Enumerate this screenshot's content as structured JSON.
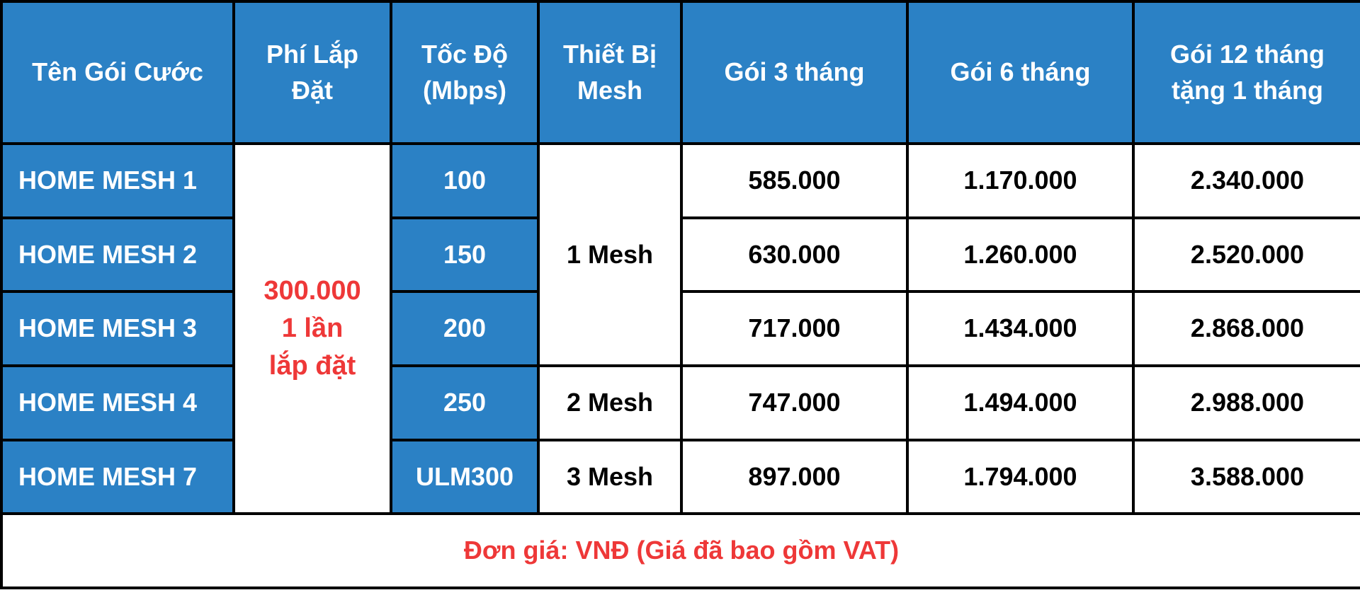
{
  "headers": {
    "name": "Tên Gói Cước",
    "install_l1": "Phí Lắp",
    "install_l2": "Đặt",
    "speed_l1": "Tốc Độ",
    "speed_l2": "(Mbps)",
    "mesh_l1": "Thiết Bị",
    "mesh_l2": "Mesh",
    "p3": "Gói 3 tháng",
    "p6": "Gói 6 tháng",
    "p12_l1": "Gói 12 tháng",
    "p12_l2": "tặng 1 tháng"
  },
  "install_fee": {
    "l1": "300.000",
    "l2": "1 lần",
    "l3": "lắp đặt"
  },
  "rows": [
    {
      "name": "HOME MESH 1",
      "speed": "100",
      "p3": "585.000",
      "p6": "1.170.000",
      "p12": "2.340.000"
    },
    {
      "name": "HOME MESH 2",
      "speed": "150",
      "p3": "630.000",
      "p6": "1.260.000",
      "p12": "2.520.000"
    },
    {
      "name": "HOME MESH 3",
      "speed": "200",
      "p3": "717.000",
      "p6": "1.434.000",
      "p12": "2.868.000"
    },
    {
      "name": "HOME MESH 4",
      "speed": "250",
      "p3": "747.000",
      "p6": "1.494.000",
      "p12": "2.988.000"
    },
    {
      "name": "HOME MESH 7",
      "speed": "ULM300",
      "p3": "897.000",
      "p6": "1.794.000",
      "p12": "3.588.000"
    }
  ],
  "mesh_groups": [
    "1 Mesh",
    "2 Mesh",
    "3 Mesh"
  ],
  "footer": "Đơn giá: VNĐ (Giá đã bao gồm VAT)",
  "colors": {
    "header_blue": "#2b81c5",
    "accent_red": "#ee3838",
    "border": "#000000"
  }
}
